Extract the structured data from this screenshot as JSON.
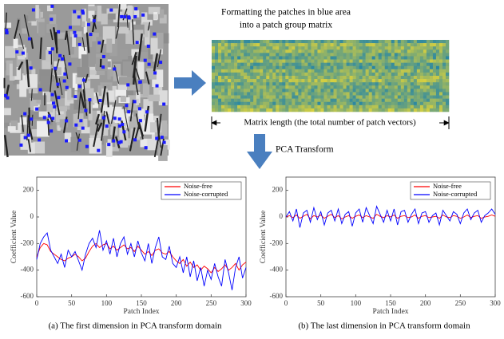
{
  "figure": {
    "step_text": [
      "Formatting the patches in blue area",
      "into a patch group matrix"
    ],
    "matrix_length_label": "Matrix length (the total number of patch vectors)",
    "transform_label": "PCA Transform"
  },
  "chart_data": [
    {
      "type": "line",
      "caption": "(a) The first dimension in PCA transform domain",
      "x_label": "Patch Index",
      "y_label": "Coefficient Value",
      "x": [
        0,
        5,
        10,
        15,
        20,
        25,
        30,
        35,
        40,
        45,
        50,
        55,
        60,
        65,
        70,
        75,
        80,
        85,
        90,
        95,
        100,
        105,
        110,
        115,
        120,
        125,
        130,
        135,
        140,
        145,
        150,
        155,
        160,
        165,
        170,
        175,
        180,
        185,
        190,
        195,
        200,
        205,
        210,
        215,
        220,
        225,
        230,
        235,
        240,
        245,
        250,
        255,
        260,
        265,
        270,
        275,
        280,
        285,
        290,
        295,
        300
      ],
      "series": [
        {
          "name": "Noise-free",
          "color": "#ff0000",
          "values": [
            -300,
            -230,
            -200,
            -210,
            -260,
            -280,
            -300,
            -320,
            -330,
            -310,
            -300,
            -280,
            -300,
            -330,
            -310,
            -260,
            -220,
            -200,
            -230,
            -210,
            -200,
            -240,
            -220,
            -250,
            -230,
            -210,
            -240,
            -230,
            -260,
            -220,
            -250,
            -280,
            -260,
            -290,
            -250,
            -240,
            -270,
            -280,
            -260,
            -300,
            -330,
            -350,
            -320,
            -370,
            -340,
            -380,
            -360,
            -400,
            -370,
            -390,
            -420,
            -380,
            -410,
            -390,
            -360,
            -400,
            -380,
            -350,
            -400,
            -360,
            -340
          ]
        },
        {
          "name": "Noise-corrupted",
          "color": "#0000ff",
          "values": [
            -320,
            -200,
            -150,
            -120,
            -250,
            -300,
            -350,
            -280,
            -380,
            -250,
            -300,
            -260,
            -330,
            -400,
            -280,
            -200,
            -160,
            -230,
            -100,
            -250,
            -180,
            -280,
            -160,
            -300,
            -200,
            -150,
            -280,
            -200,
            -300,
            -180,
            -270,
            -330,
            -200,
            -350,
            -230,
            -150,
            -300,
            -320,
            -220,
            -350,
            -380,
            -300,
            -420,
            -300,
            -450,
            -330,
            -480,
            -380,
            -520,
            -400,
            -470,
            -350,
            -450,
            -520,
            -320,
            -420,
            -550,
            -380,
            -300,
            -460,
            -380
          ]
        }
      ],
      "xlim": [
        0,
        300
      ],
      "xticks": [
        0,
        50,
        100,
        150,
        200,
        250,
        300
      ],
      "ylim": [
        -600,
        300
      ],
      "yticks": [
        -600,
        -400,
        -200,
        0,
        200
      ],
      "legend": "top right",
      "grid": false
    },
    {
      "type": "line",
      "caption": "(b) The last dimension in PCA transform domain",
      "x_label": "Patch Index",
      "y_label": "Coefficient Value",
      "x": [
        0,
        5,
        10,
        15,
        20,
        25,
        30,
        35,
        40,
        45,
        50,
        55,
        60,
        65,
        70,
        75,
        80,
        85,
        90,
        95,
        100,
        105,
        110,
        115,
        120,
        125,
        130,
        135,
        140,
        145,
        150,
        155,
        160,
        165,
        170,
        175,
        180,
        185,
        190,
        195,
        200,
        205,
        210,
        215,
        220,
        225,
        230,
        235,
        240,
        245,
        250,
        255,
        260,
        265,
        270,
        275,
        280,
        285,
        290,
        295,
        300
      ],
      "series": [
        {
          "name": "Noise-free",
          "color": "#ff0000",
          "values": [
            0,
            10,
            -5,
            15,
            -10,
            5,
            20,
            -15,
            10,
            0,
            15,
            -10,
            5,
            20,
            -5,
            10,
            -15,
            0,
            10,
            -10,
            5,
            15,
            -5,
            10,
            0,
            -10,
            20,
            5,
            -5,
            10,
            0,
            15,
            -10,
            5,
            10,
            -5,
            0,
            15,
            -10,
            5,
            10,
            -5,
            0,
            5,
            -10,
            15,
            0,
            -5,
            10,
            5,
            -10,
            0,
            15,
            -5,
            5,
            10,
            -10,
            0,
            5,
            15,
            5
          ]
        },
        {
          "name": "Noise-corrupted",
          "color": "#0000ff",
          "values": [
            0,
            40,
            -30,
            60,
            -80,
            30,
            50,
            -40,
            70,
            -20,
            40,
            -60,
            30,
            50,
            -30,
            60,
            -50,
            20,
            40,
            -70,
            30,
            60,
            -40,
            70,
            10,
            -50,
            80,
            20,
            -40,
            50,
            -30,
            60,
            -60,
            40,
            50,
            -40,
            20,
            60,
            -50,
            30,
            40,
            -40,
            10,
            30,
            -60,
            50,
            10,
            -30,
            40,
            20,
            -50,
            30,
            60,
            -20,
            30,
            50,
            -40,
            10,
            30,
            60,
            20
          ]
        }
      ],
      "xlim": [
        0,
        300
      ],
      "xticks": [
        0,
        50,
        100,
        150,
        200,
        250,
        300
      ],
      "ylim": [
        -600,
        300
      ],
      "yticks": [
        -600,
        -400,
        -200,
        0,
        200
      ],
      "legend": "top right",
      "grid": false
    }
  ]
}
